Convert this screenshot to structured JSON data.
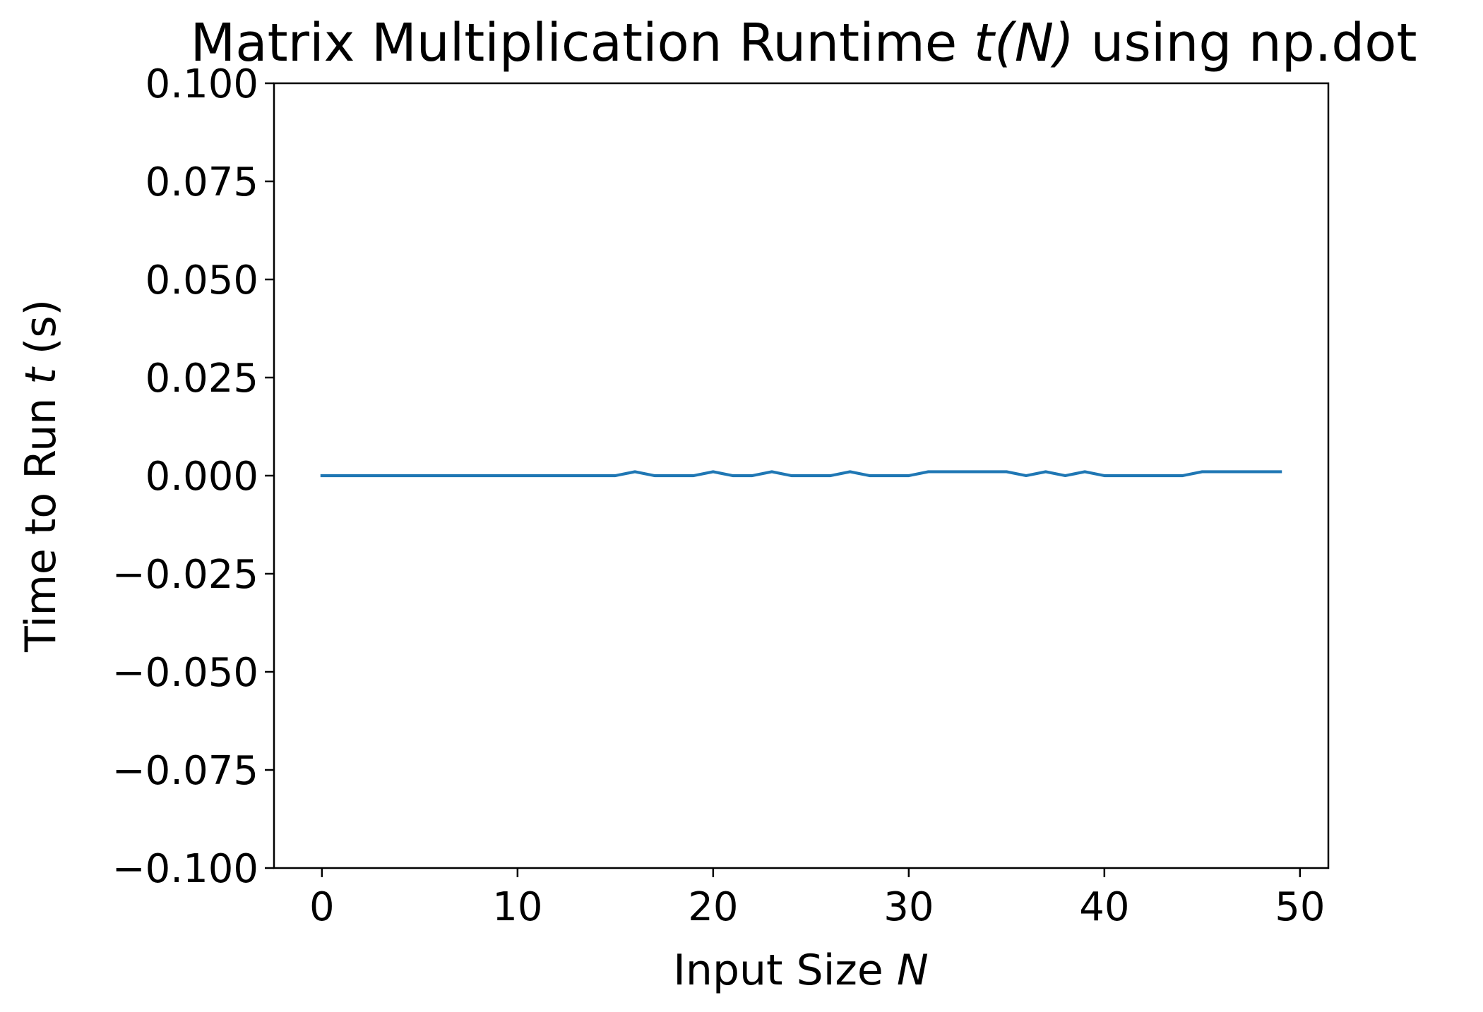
{
  "chart_data": {
    "type": "line",
    "title": {
      "prefix": "Matrix Multiplication Runtime ",
      "math": "t(N)",
      "suffix": " using np.dot"
    },
    "xlabel": {
      "prefix": "Input Size ",
      "math": "N"
    },
    "ylabel": {
      "prefix": "Time to Run ",
      "math": "t",
      "suffix": " (s)"
    },
    "xlim": [
      -2.45,
      51.45
    ],
    "ylim": [
      -0.1,
      0.1
    ],
    "xticks": [
      0,
      10,
      20,
      30,
      40,
      50
    ],
    "xtick_labels": [
      "0",
      "10",
      "20",
      "30",
      "40",
      "50"
    ],
    "yticks": [
      -0.1,
      -0.075,
      -0.05,
      -0.025,
      0.0,
      0.025,
      0.05,
      0.075,
      0.1
    ],
    "ytick_labels": [
      "−0.100",
      "−0.075",
      "−0.050",
      "−0.025",
      "0.000",
      "0.025",
      "0.050",
      "0.075",
      "0.100"
    ],
    "grid": false,
    "line_color": "#1f77b4",
    "series": [
      {
        "x": [
          0,
          1,
          2,
          3,
          4,
          5,
          6,
          7,
          8,
          9,
          10,
          11,
          12,
          13,
          14,
          15,
          16,
          17,
          18,
          19,
          20,
          21,
          22,
          23,
          24,
          25,
          26,
          27,
          28,
          29,
          30,
          31,
          32,
          33,
          34,
          35,
          36,
          37,
          38,
          39,
          40,
          41,
          42,
          43,
          44,
          45,
          46,
          47,
          48,
          49
        ],
        "values": [
          0,
          0,
          0,
          0,
          0,
          0,
          0,
          0,
          0,
          0,
          0,
          0,
          0,
          0,
          0,
          0,
          0.001,
          0,
          0,
          0,
          0.001,
          0,
          0,
          0.001,
          0,
          0,
          0,
          0.001,
          0,
          0,
          0,
          0.001,
          0.001,
          0.001,
          0.001,
          0.001,
          0,
          0.001,
          0,
          0.001,
          0,
          0,
          0,
          0,
          0,
          0.001,
          0.001,
          0.001,
          0.001,
          0.001
        ]
      }
    ]
  }
}
